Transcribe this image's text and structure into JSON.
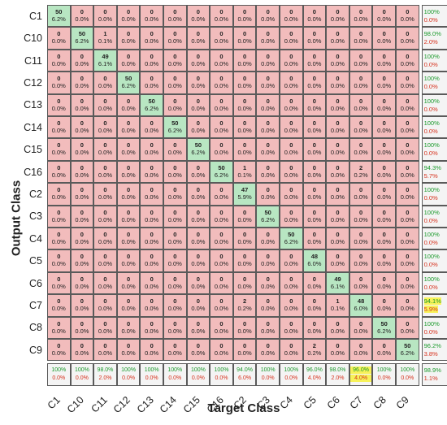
{
  "chart_data": {
    "type": "heatmap",
    "subtype": "confusion_matrix",
    "xlabel": "Target Class",
    "ylabel": "Output Class",
    "classes": [
      "C1",
      "C10",
      "C11",
      "C12",
      "C13",
      "C14",
      "C15",
      "C16",
      "C2",
      "C3",
      "C4",
      "C5",
      "C6",
      "C7",
      "C8",
      "C9"
    ],
    "matrix": [
      [
        50,
        0,
        0,
        0,
        0,
        0,
        0,
        0,
        0,
        0,
        0,
        0,
        0,
        0,
        0,
        0
      ],
      [
        0,
        50,
        1,
        0,
        0,
        0,
        0,
        0,
        0,
        0,
        0,
        0,
        0,
        0,
        0,
        0
      ],
      [
        0,
        0,
        49,
        0,
        0,
        0,
        0,
        0,
        0,
        0,
        0,
        0,
        0,
        0,
        0,
        0
      ],
      [
        0,
        0,
        0,
        50,
        0,
        0,
        0,
        0,
        0,
        0,
        0,
        0,
        0,
        0,
        0,
        0
      ],
      [
        0,
        0,
        0,
        0,
        50,
        0,
        0,
        0,
        0,
        0,
        0,
        0,
        0,
        0,
        0,
        0
      ],
      [
        0,
        0,
        0,
        0,
        0,
        50,
        0,
        0,
        0,
        0,
        0,
        0,
        0,
        0,
        0,
        0
      ],
      [
        0,
        0,
        0,
        0,
        0,
        0,
        50,
        0,
        0,
        0,
        0,
        0,
        0,
        0,
        0,
        0
      ],
      [
        0,
        0,
        0,
        0,
        0,
        0,
        0,
        50,
        1,
        0,
        0,
        0,
        0,
        2,
        0,
        0
      ],
      [
        0,
        0,
        0,
        0,
        0,
        0,
        0,
        0,
        47,
        0,
        0,
        0,
        0,
        0,
        0,
        0
      ],
      [
        0,
        0,
        0,
        0,
        0,
        0,
        0,
        0,
        0,
        50,
        0,
        0,
        0,
        0,
        0,
        0
      ],
      [
        0,
        0,
        0,
        0,
        0,
        0,
        0,
        0,
        0,
        0,
        50,
        0,
        0,
        0,
        0,
        0
      ],
      [
        0,
        0,
        0,
        0,
        0,
        0,
        0,
        0,
        0,
        0,
        0,
        48,
        0,
        0,
        0,
        0
      ],
      [
        0,
        0,
        0,
        0,
        0,
        0,
        0,
        0,
        0,
        0,
        0,
        0,
        49,
        0,
        0,
        0
      ],
      [
        0,
        0,
        0,
        0,
        0,
        0,
        0,
        0,
        2,
        0,
        0,
        0,
        1,
        48,
        0,
        0
      ],
      [
        0,
        0,
        0,
        0,
        0,
        0,
        0,
        0,
        0,
        0,
        0,
        0,
        0,
        0,
        50,
        0
      ],
      [
        0,
        0,
        0,
        0,
        0,
        0,
        0,
        0,
        0,
        0,
        0,
        2,
        0,
        0,
        0,
        50
      ]
    ],
    "percent": [
      [
        "6.2%",
        "0.0%",
        "0.0%",
        "0.0%",
        "0.0%",
        "0.0%",
        "0.0%",
        "0.0%",
        "0.0%",
        "0.0%",
        "0.0%",
        "0.0%",
        "0.0%",
        "0.0%",
        "0.0%",
        "0.0%"
      ],
      [
        "0.0%",
        "6.2%",
        "0.1%",
        "0.0%",
        "0.0%",
        "0.0%",
        "0.0%",
        "0.0%",
        "0.0%",
        "0.0%",
        "0.0%",
        "0.0%",
        "0.0%",
        "0.0%",
        "0.0%",
        "0.0%"
      ],
      [
        "0.0%",
        "0.0%",
        "6.1%",
        "0.0%",
        "0.0%",
        "0.0%",
        "0.0%",
        "0.0%",
        "0.0%",
        "0.0%",
        "0.0%",
        "0.0%",
        "0.0%",
        "0.0%",
        "0.0%",
        "0.0%"
      ],
      [
        "0.0%",
        "0.0%",
        "0.0%",
        "6.2%",
        "0.0%",
        "0.0%",
        "0.0%",
        "0.0%",
        "0.0%",
        "0.0%",
        "0.0%",
        "0.0%",
        "0.0%",
        "0.0%",
        "0.0%",
        "0.0%"
      ],
      [
        "0.0%",
        "0.0%",
        "0.0%",
        "0.0%",
        "6.2%",
        "0.0%",
        "0.0%",
        "0.0%",
        "0.0%",
        "0.0%",
        "0.0%",
        "0.0%",
        "0.0%",
        "0.0%",
        "0.0%",
        "0.0%"
      ],
      [
        "0.0%",
        "0.0%",
        "0.0%",
        "0.0%",
        "0.0%",
        "6.2%",
        "0.0%",
        "0.0%",
        "0.0%",
        "0.0%",
        "0.0%",
        "0.0%",
        "0.0%",
        "0.0%",
        "0.0%",
        "0.0%"
      ],
      [
        "0.0%",
        "0.0%",
        "0.0%",
        "0.0%",
        "0.0%",
        "0.0%",
        "6.2%",
        "0.0%",
        "0.0%",
        "0.0%",
        "0.0%",
        "0.0%",
        "0.0%",
        "0.0%",
        "0.0%",
        "0.0%"
      ],
      [
        "0.0%",
        "0.0%",
        "0.0%",
        "0.0%",
        "0.0%",
        "0.0%",
        "0.0%",
        "6.2%",
        "0.1%",
        "0.0%",
        "0.0%",
        "0.0%",
        "0.0%",
        "0.2%",
        "0.0%",
        "0.0%"
      ],
      [
        "0.0%",
        "0.0%",
        "0.0%",
        "0.0%",
        "0.0%",
        "0.0%",
        "0.0%",
        "0.0%",
        "5.9%",
        "0.0%",
        "0.0%",
        "0.0%",
        "0.0%",
        "0.0%",
        "0.0%",
        "0.0%"
      ],
      [
        "0.0%",
        "0.0%",
        "0.0%",
        "0.0%",
        "0.0%",
        "0.0%",
        "0.0%",
        "0.0%",
        "0.0%",
        "6.2%",
        "0.0%",
        "0.0%",
        "0.0%",
        "0.0%",
        "0.0%",
        "0.0%"
      ],
      [
        "0.0%",
        "0.0%",
        "0.0%",
        "0.0%",
        "0.0%",
        "0.0%",
        "0.0%",
        "0.0%",
        "0.0%",
        "0.0%",
        "6.2%",
        "0.0%",
        "0.0%",
        "0.0%",
        "0.0%",
        "0.0%"
      ],
      [
        "0.0%",
        "0.0%",
        "0.0%",
        "0.0%",
        "0.0%",
        "0.0%",
        "0.0%",
        "0.0%",
        "0.0%",
        "0.0%",
        "0.0%",
        "6.0%",
        "0.0%",
        "0.0%",
        "0.0%",
        "0.0%"
      ],
      [
        "0.0%",
        "0.0%",
        "0.0%",
        "0.0%",
        "0.0%",
        "0.0%",
        "0.0%",
        "0.0%",
        "0.0%",
        "0.0%",
        "0.0%",
        "0.0%",
        "6.1%",
        "0.0%",
        "0.0%",
        "0.0%"
      ],
      [
        "0.0%",
        "0.0%",
        "0.0%",
        "0.0%",
        "0.0%",
        "0.0%",
        "0.0%",
        "0.0%",
        "0.2%",
        "0.0%",
        "0.0%",
        "0.0%",
        "0.1%",
        "6.0%",
        "0.0%",
        "0.0%"
      ],
      [
        "0.0%",
        "0.0%",
        "0.0%",
        "0.0%",
        "0.0%",
        "0.0%",
        "0.0%",
        "0.0%",
        "0.0%",
        "0.0%",
        "0.0%",
        "0.0%",
        "0.0%",
        "0.0%",
        "6.2%",
        "0.0%"
      ],
      [
        "0.0%",
        "0.0%",
        "0.0%",
        "0.0%",
        "0.0%",
        "0.0%",
        "0.0%",
        "0.0%",
        "0.0%",
        "0.0%",
        "0.0%",
        "0.2%",
        "0.0%",
        "0.0%",
        "0.0%",
        "6.2%"
      ]
    ],
    "row_summary": [
      [
        "100%",
        "0.0%"
      ],
      [
        "98.0%",
        "2.0%"
      ],
      [
        "100%",
        "0.0%"
      ],
      [
        "100%",
        "0.0%"
      ],
      [
        "100%",
        "0.0%"
      ],
      [
        "100%",
        "0.0%"
      ],
      [
        "100%",
        "0.0%"
      ],
      [
        "94.3%",
        "5.7%"
      ],
      [
        "100%",
        "0.0%"
      ],
      [
        "100%",
        "0.0%"
      ],
      [
        "100%",
        "0.0%"
      ],
      [
        "100%",
        "0.0%"
      ],
      [
        "100%",
        "0.0%"
      ],
      [
        "94.1%",
        "5.9%"
      ],
      [
        "100%",
        "0.0%"
      ],
      [
        "96.2%",
        "3.8%"
      ]
    ],
    "col_summary": [
      [
        "100%",
        "0.0%"
      ],
      [
        "100%",
        "0.0%"
      ],
      [
        "98.0%",
        "2.0%"
      ],
      [
        "100%",
        "0.0%"
      ],
      [
        "100%",
        "0.0%"
      ],
      [
        "100%",
        "0.0%"
      ],
      [
        "100%",
        "0.0%"
      ],
      [
        "100%",
        "0.0%"
      ],
      [
        "94.0%",
        "6.0%"
      ],
      [
        "100%",
        "0.0%"
      ],
      [
        "100%",
        "0.0%"
      ],
      [
        "96.0%",
        "4.0%"
      ],
      [
        "98.0%",
        "2.0%"
      ],
      [
        "96.0%",
        "4.0%"
      ],
      [
        "100%",
        "0.0%"
      ],
      [
        "100%",
        "0.0%"
      ]
    ],
    "overall": [
      "98.9%",
      "1.1%"
    ],
    "colors": {
      "correct": "#b8e6c2",
      "incorrect": "#f2bcbc",
      "summary": "#f4f4f4",
      "highlight": "#f7f25a",
      "good_text": "#1b9a2c",
      "bad_text": "#d6331f"
    },
    "highlighted_summaries": {
      "row": [
        13
      ],
      "col": [
        13
      ]
    }
  }
}
